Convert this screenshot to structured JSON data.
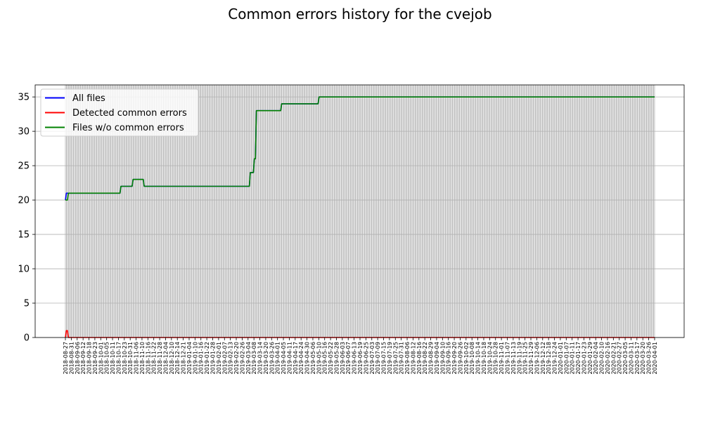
{
  "chart_data": {
    "type": "line",
    "title": "Common errors history for the cvejob",
    "xlabel": "",
    "ylabel": "",
    "ylim": [
      0,
      36.75
    ],
    "yticks": [
      0,
      5,
      10,
      15,
      20,
      25,
      30,
      35
    ],
    "grid": true,
    "legend_position": "top-left",
    "x_range": [
      "2018-08-27",
      "2020-04-01"
    ],
    "x_tick_labels": [
      "2018-08-27",
      "2018-08-31",
      "2018-09-06",
      "2018-09-12",
      "2018-09-18",
      "2018-09-23",
      "2018-10-01",
      "2018-10-05",
      "2018-10-11",
      "2018-10-17",
      "2018-10-23",
      "2018-10-31",
      "2018-11-06",
      "2018-11-10",
      "2018-11-16",
      "2018-11-22",
      "2018-11-28",
      "2018-12-04",
      "2018-12-10",
      "2018-12-14",
      "2018-12-21",
      "2019-01-04",
      "2019-01-10",
      "2019-01-16",
      "2019-01-22",
      "2019-01-28",
      "2019-02-01",
      "2019-02-07",
      "2019-02-13",
      "2019-02-20",
      "2019-02-26",
      "2019-03-04",
      "2019-03-08",
      "2019-03-14",
      "2019-03-20",
      "2019-03-26",
      "2019-04-01",
      "2019-04-05",
      "2019-04-11",
      "2019-04-17",
      "2019-04-24",
      "2019-04-30",
      "2019-05-06",
      "2019-05-10",
      "2019-05-16",
      "2019-05-22",
      "2019-05-28",
      "2019-06-03",
      "2019-06-07",
      "2019-06-13",
      "2019-06-19",
      "2019-06-25",
      "2019-07-03",
      "2019-07-09",
      "2019-07-15",
      "2019-07-19",
      "2019-07-25",
      "2019-07-31",
      "2019-08-06",
      "2019-08-12",
      "2019-08-16",
      "2019-08-22",
      "2019-08-29",
      "2019-09-04",
      "2019-09-10",
      "2019-09-16",
      "2019-09-20",
      "2019-09-26",
      "2019-10-02",
      "2019-10-08",
      "2019-10-14",
      "2019-10-18",
      "2019-10-24",
      "2019-10-28",
      "2019-11-01",
      "2019-11-07",
      "2019-11-13",
      "2019-11-19",
      "2019-11-25",
      "2019-11-29",
      "2019-12-06",
      "2019-12-12",
      "2019-12-18",
      "2019-12-24",
      "2020-01-01",
      "2020-01-07",
      "2020-01-11",
      "2020-01-17",
      "2020-01-23",
      "2020-01-29",
      "2020-02-04",
      "2020-02-10",
      "2020-02-16",
      "2020-02-21",
      "2020-02-27",
      "2020-03-05",
      "2020-03-11",
      "2020-03-17",
      "2020-03-20",
      "2020-03-26",
      "2020-04-01"
    ],
    "series": [
      {
        "name": "All files",
        "color": "#0000ff",
        "points": [
          [
            "2018-08-27",
            20
          ],
          [
            "2018-08-28",
            21
          ],
          [
            "2018-10-20",
            21
          ],
          [
            "2018-10-21",
            22
          ],
          [
            "2018-11-01",
            22
          ],
          [
            "2018-11-02",
            23
          ],
          [
            "2018-11-12",
            23
          ],
          [
            "2018-11-13",
            22
          ],
          [
            "2019-02-25",
            22
          ],
          [
            "2019-02-26",
            24
          ],
          [
            "2019-03-01",
            24
          ],
          [
            "2019-03-02",
            26
          ],
          [
            "2019-03-03",
            26
          ],
          [
            "2019-03-04",
            33
          ],
          [
            "2019-03-28",
            33
          ],
          [
            "2019-03-29",
            34
          ],
          [
            "2019-05-04",
            34
          ],
          [
            "2019-05-05",
            35
          ],
          [
            "2020-04-01",
            35
          ]
        ]
      },
      {
        "name": "Detected common errors",
        "color": "#ff0000",
        "points": [
          [
            "2018-08-27",
            0
          ],
          [
            "2018-08-28",
            1
          ],
          [
            "2018-08-29",
            1
          ],
          [
            "2018-08-30",
            0
          ],
          [
            "2020-04-01",
            0
          ]
        ]
      },
      {
        "name": "Files w/o common errors",
        "color": "#008000",
        "points": [
          [
            "2018-08-27",
            20
          ],
          [
            "2018-08-29",
            20
          ],
          [
            "2018-08-30",
            21
          ],
          [
            "2018-10-20",
            21
          ],
          [
            "2018-10-21",
            22
          ],
          [
            "2018-11-01",
            22
          ],
          [
            "2018-11-02",
            23
          ],
          [
            "2018-11-12",
            23
          ],
          [
            "2018-11-13",
            22
          ],
          [
            "2019-02-25",
            22
          ],
          [
            "2019-02-26",
            24
          ],
          [
            "2019-03-01",
            24
          ],
          [
            "2019-03-02",
            26
          ],
          [
            "2019-03-03",
            26
          ],
          [
            "2019-03-04",
            33
          ],
          [
            "2019-03-28",
            33
          ],
          [
            "2019-03-29",
            34
          ],
          [
            "2019-05-04",
            34
          ],
          [
            "2019-05-05",
            35
          ],
          [
            "2020-04-01",
            35
          ]
        ]
      }
    ]
  }
}
